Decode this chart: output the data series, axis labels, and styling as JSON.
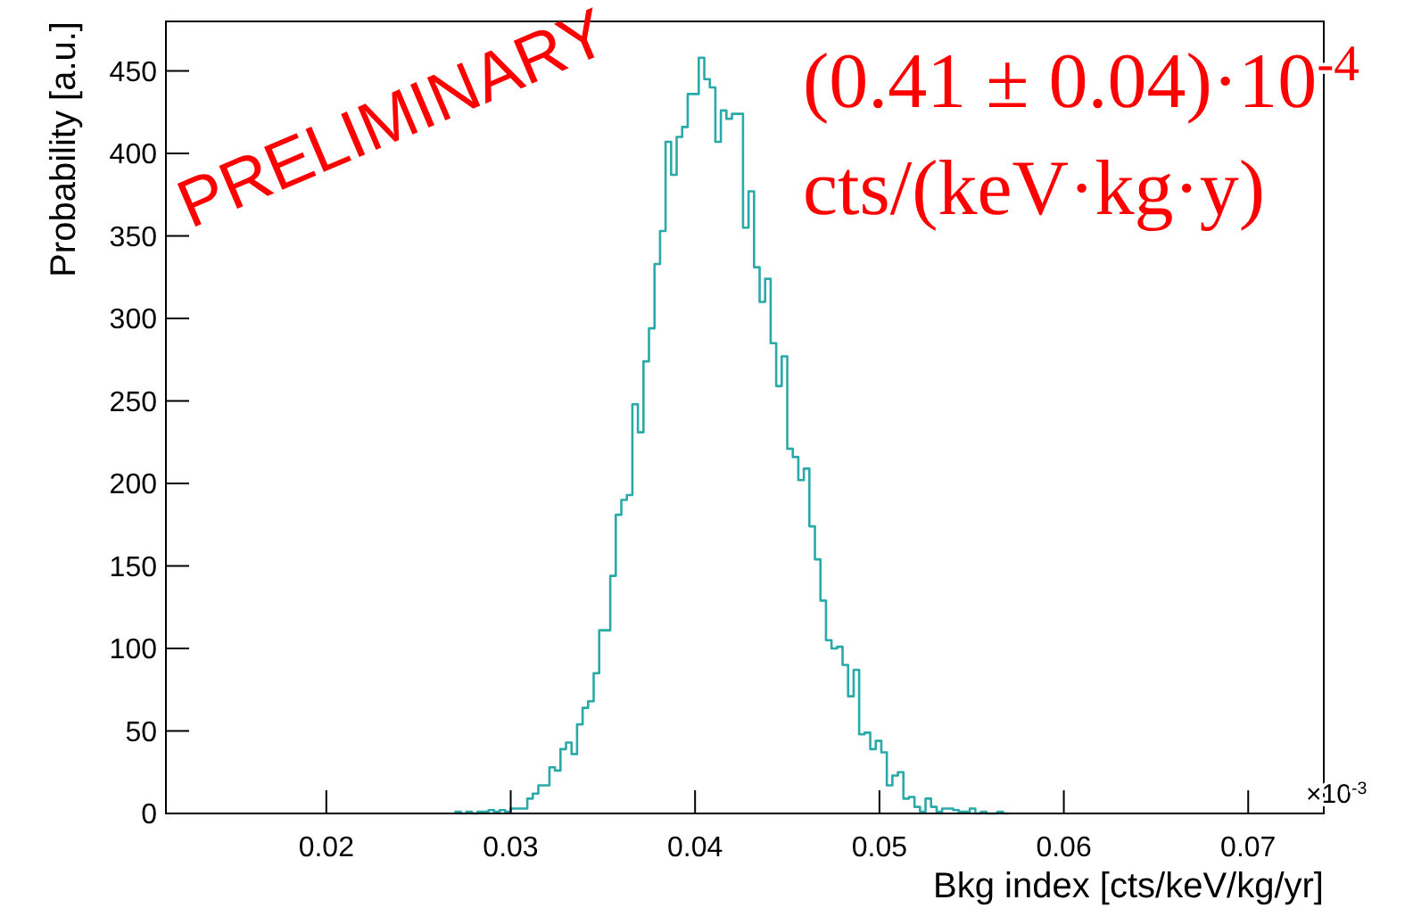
{
  "chart_data": {
    "type": "histogram",
    "xlabel": "Bkg index [cts/keV/kg/yr]",
    "ylabel": "Probability [a.u.]",
    "annotations": [
      "PRELIMINARY",
      "(0.41 ± 0.04)·10$^{-4}$",
      "cts/(keV·kg·y)",
      "×10$^{-3}$"
    ],
    "color": "#2aa9a9",
    "bins": [
      0.027,
      0.0273,
      0.0276,
      0.0279,
      0.0282,
      0.0285,
      0.0288,
      0.0291,
      0.0294,
      0.0297,
      0.03,
      0.0303,
      0.0306,
      0.0309,
      0.0312,
      0.0315,
      0.0318,
      0.0321,
      0.0324,
      0.0327,
      0.033,
      0.0333,
      0.0336,
      0.0339,
      0.0342,
      0.0345,
      0.0348,
      0.0351,
      0.0354,
      0.0357,
      0.036,
      0.0363,
      0.0366,
      0.0369,
      0.0372,
      0.0375,
      0.0378,
      0.0381,
      0.0384,
      0.0387,
      0.039,
      0.0393,
      0.0396,
      0.0399,
      0.0402,
      0.0405,
      0.0408,
      0.0411,
      0.0414,
      0.0417,
      0.042,
      0.0423,
      0.0426,
      0.0429,
      0.0432,
      0.0435,
      0.0438,
      0.0441,
      0.0444,
      0.0447,
      0.045,
      0.0453,
      0.0456,
      0.0459,
      0.0462,
      0.0465,
      0.0468,
      0.0471,
      0.0474,
      0.0477,
      0.048,
      0.0483,
      0.0486,
      0.0489,
      0.0492,
      0.0495,
      0.0498,
      0.0501,
      0.0504,
      0.0507,
      0.051,
      0.0513,
      0.0516,
      0.0519,
      0.0522,
      0.0525,
      0.0528,
      0.0531,
      0.0534,
      0.0537,
      0.054,
      0.0543,
      0.0546,
      0.0549,
      0.0552,
      0.0555,
      0.0558,
      0.0561,
      0.0564,
      0.0567,
      0.057
    ],
    "values": [
      1,
      0,
      1,
      0,
      1,
      1,
      2,
      1,
      2,
      1,
      3,
      3,
      3,
      9,
      12,
      17,
      17,
      28,
      26,
      39,
      43,
      36,
      54,
      64,
      68,
      85,
      111,
      111,
      144,
      181,
      190,
      193,
      248,
      231,
      274,
      294,
      333,
      353,
      407,
      387,
      410,
      416,
      436,
      436,
      458,
      445,
      440,
      407,
      426,
      421,
      424,
      424,
      355,
      377,
      331,
      310,
      324,
      285,
      259,
      277,
      221,
      216,
      202,
      209,
      174,
      154,
      129,
      105,
      100,
      101,
      90,
      71,
      87,
      48,
      49,
      39,
      44,
      37,
      17,
      23,
      25,
      9,
      10,
      4,
      1,
      9,
      4,
      1,
      3,
      3,
      2,
      1,
      1,
      3,
      0,
      1,
      0,
      0,
      1,
      0
    ],
    "xlim": [
      0.0113,
      0.0741
    ],
    "xticks": [
      0.02,
      0.03,
      0.04,
      0.05,
      0.06,
      0.07
    ],
    "ylim": [
      0,
      480
    ],
    "yticks": [
      0,
      50,
      100,
      150,
      200,
      250,
      300,
      350,
      400,
      450
    ],
    "grid": false
  }
}
